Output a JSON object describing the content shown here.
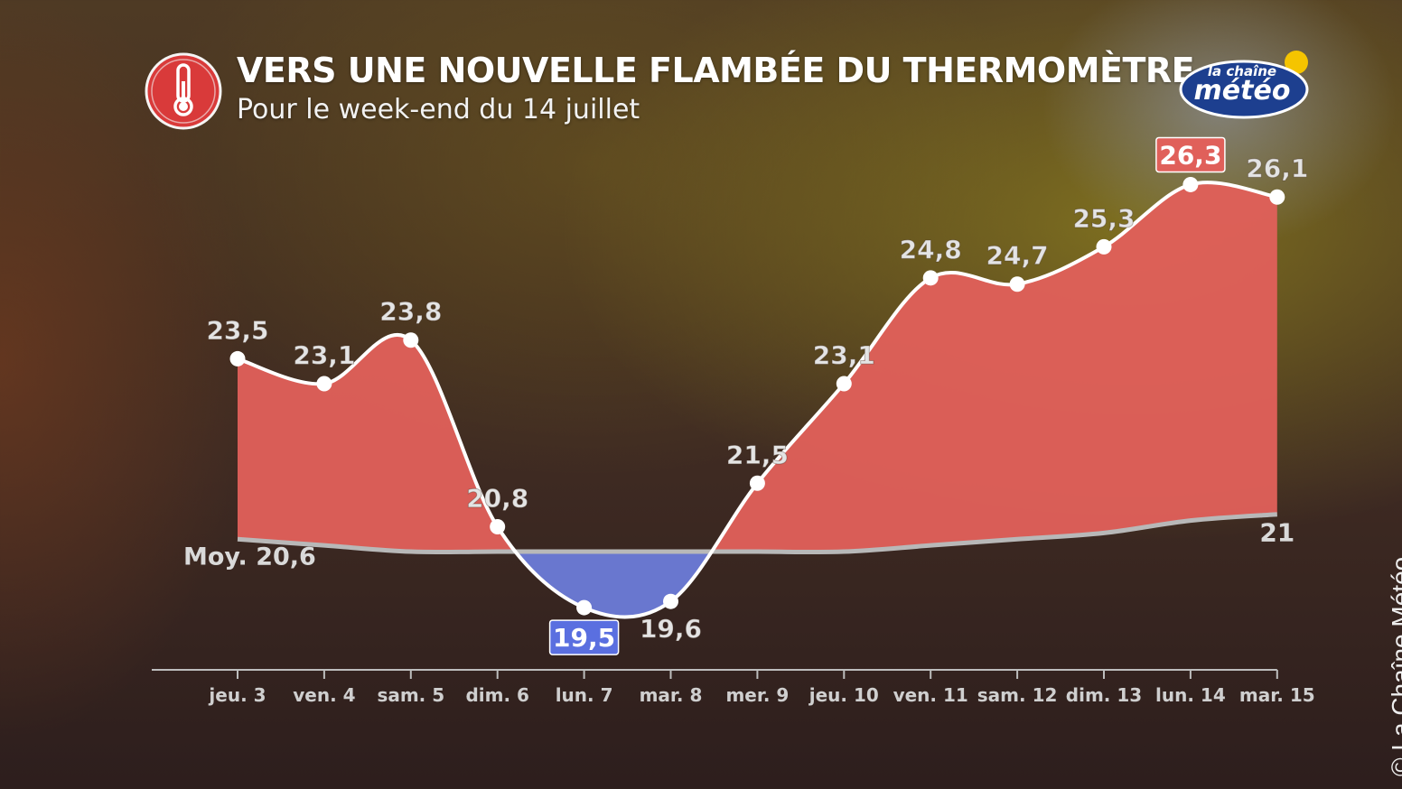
{
  "header": {
    "title": "VERS UNE NOUVELLE FLAMBÉE DU THERMOMÈTRE",
    "subtitle": "Pour le week-end du 14 juillet",
    "icon": "thermometer-icon"
  },
  "logo": {
    "line1": "la chaîne",
    "line2": "météo"
  },
  "copyright": "© La Chaîne Météo",
  "colors": {
    "above_avg_fill": "#e0605a",
    "below_avg_fill": "#6b7bd6",
    "temp_line": "#ffffff",
    "avg_line": "#b8b8b8",
    "max_badge": "#e0605a",
    "min_badge": "#5a6fe0",
    "label_text": "#e4e4e4"
  },
  "chart_data": {
    "type": "area",
    "categories": [
      "jeu. 3",
      "ven. 4",
      "sam. 5",
      "dim. 6",
      "lun. 7",
      "mar. 8",
      "mer. 9",
      "jeu. 10",
      "ven. 11",
      "sam. 12",
      "dim. 13",
      "lun. 14",
      "mar. 15"
    ],
    "series": [
      {
        "values": [
          23.5,
          23.1,
          23.8,
          20.8,
          19.5,
          19.6,
          21.5,
          23.1,
          24.8,
          24.7,
          25.3,
          26.3,
          26.1
        ],
        "labels": [
          "23,5",
          "23,1",
          "23,8",
          "20,8",
          "19,5",
          "19,6",
          "21,5",
          "23,1",
          "24,8",
          "24,7",
          "25,3",
          "26,3",
          "26,1"
        ]
      },
      {
        "values": [
          20.6,
          20.5,
          20.4,
          20.4,
          20.4,
          20.4,
          20.4,
          20.4,
          20.5,
          20.6,
          20.7,
          20.9,
          21.0
        ],
        "start_label": "Moy. 20,6",
        "end_label": "21"
      }
    ],
    "max_index": 11,
    "min_index": 4,
    "ylim": [
      18.5,
      26.8
    ],
    "grid": false
  }
}
